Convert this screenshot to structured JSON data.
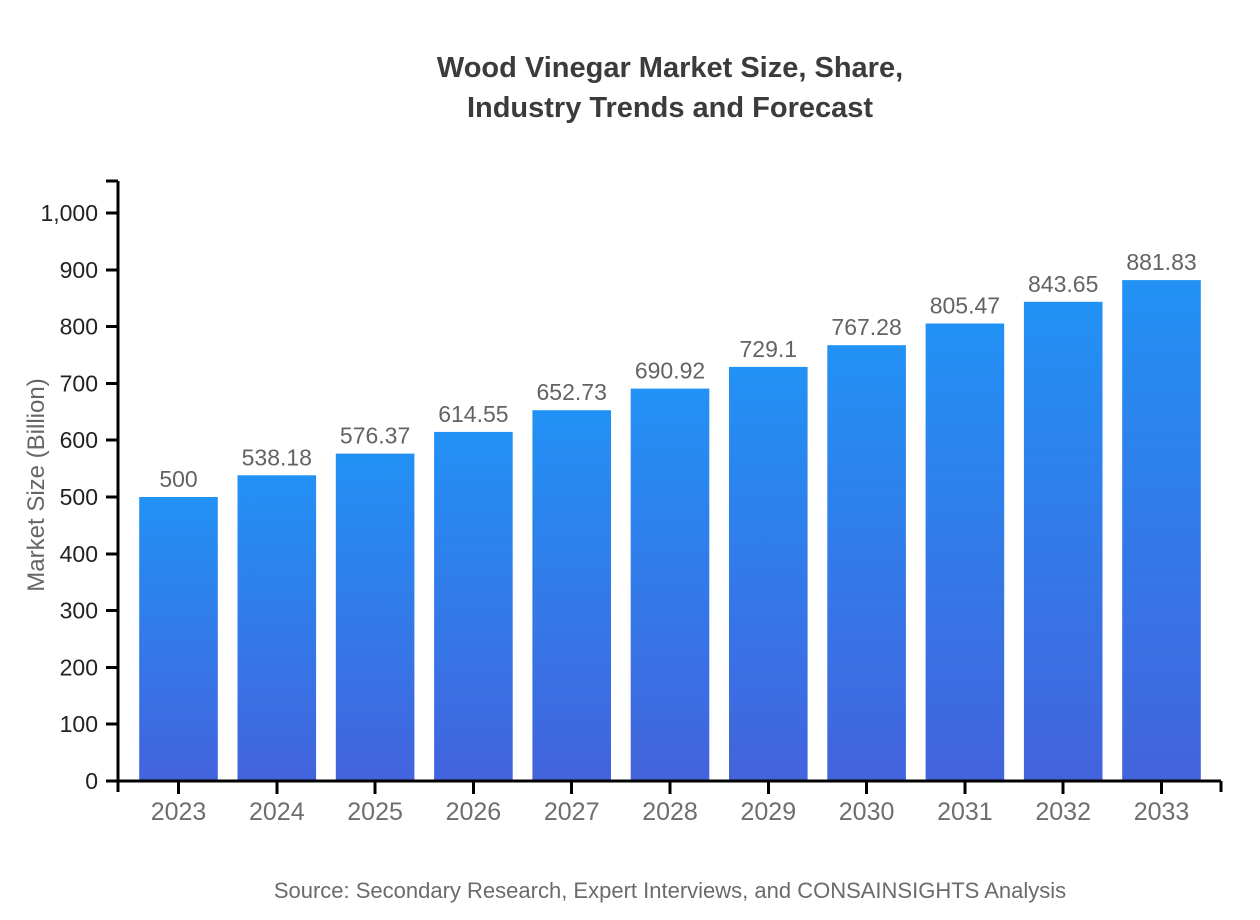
{
  "title": {
    "line1": "Wood Vinegar Market Size, Share,",
    "line2": "Industry Trends and Forecast"
  },
  "source_note": "Source: Secondary Research, Expert Interviews, and CONSAINSIGHTS Analysis",
  "chart_data": {
    "type": "bar",
    "title": "Wood Vinegar Market Size, Share, Industry Trends and Forecast",
    "categories": [
      "2023",
      "2024",
      "2025",
      "2026",
      "2027",
      "2028",
      "2029",
      "2030",
      "2031",
      "2032",
      "2033"
    ],
    "values": [
      500,
      538.18,
      576.37,
      614.55,
      652.73,
      690.92,
      729.1,
      767.28,
      805.47,
      843.65,
      881.83
    ],
    "bar_labels": [
      "500",
      "538.18",
      "576.37",
      "614.55",
      "652.73",
      "690.92",
      "729.1",
      "767.28",
      "805.47",
      "843.65",
      "881.83"
    ],
    "xlabel": "",
    "ylabel": "Market Size (Billion)",
    "ylim": [
      0,
      1000
    ],
    "ytick_step": 100,
    "ytick_labels": [
      "0",
      "100",
      "200",
      "300",
      "400",
      "500",
      "600",
      "700",
      "800",
      "900",
      "1,000"
    ],
    "grid": false,
    "legend_position": "none",
    "colors": {
      "bar_gradient_top": "#2291F5",
      "bar_gradient_bottom": "#4363DC",
      "axis": "#000000",
      "ytick_label": "#222222",
      "xtick_label": "#6e6e6e",
      "value_label": "#636363",
      "title": "#3b3b3b",
      "source": "#6b6b6b"
    }
  }
}
